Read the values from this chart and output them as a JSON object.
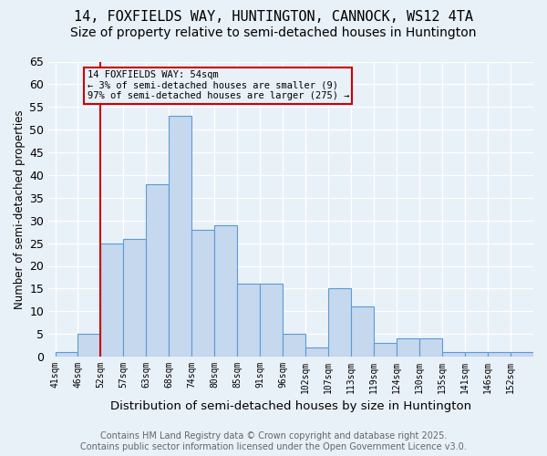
{
  "title": "14, FOXFIELDS WAY, HUNTINGTON, CANNOCK, WS12 4TA",
  "subtitle": "Size of property relative to semi-detached houses in Huntington",
  "xlabel": "Distribution of semi-detached houses by size in Huntington",
  "ylabel": "Number of semi-detached properties",
  "bin_labels": [
    "41sqm",
    "46sqm",
    "52sqm",
    "57sqm",
    "63sqm",
    "68sqm",
    "74sqm",
    "80sqm",
    "85sqm",
    "91sqm",
    "96sqm",
    "102sqm",
    "107sqm",
    "113sqm",
    "119sqm",
    "124sqm",
    "130sqm",
    "135sqm",
    "141sqm",
    "146sqm",
    "152sqm"
  ],
  "counts": [
    1,
    5,
    25,
    26,
    38,
    53,
    28,
    29,
    16,
    16,
    5,
    2,
    15,
    11,
    3,
    4,
    4,
    1,
    1,
    1,
    1
  ],
  "bar_color": "#c5d8ee",
  "bar_edge_color": "#5b9bd5",
  "bg_color": "#e8f0f8",
  "grid_color": "#ffffff",
  "property_line_color": "#cc0000",
  "property_line_bin_idx": 2,
  "annotation_text_line1": "14 FOXFIELDS WAY: 54sqm",
  "annotation_text_line2": "← 3% of semi-detached houses are smaller (9)",
  "annotation_text_line3": "97% of semi-detached houses are larger (275) →",
  "annotation_edge_color": "#cc0000",
  "ylim": [
    0,
    65
  ],
  "yticks": [
    0,
    5,
    10,
    15,
    20,
    25,
    30,
    35,
    40,
    45,
    50,
    55,
    60,
    65
  ],
  "title_fontsize": 11,
  "subtitle_fontsize": 10,
  "footer_line1": "Contains HM Land Registry data © Crown copyright and database right 2025.",
  "footer_line2": "Contains public sector information licensed under the Open Government Licence v3.0.",
  "footer_fontsize": 7
}
